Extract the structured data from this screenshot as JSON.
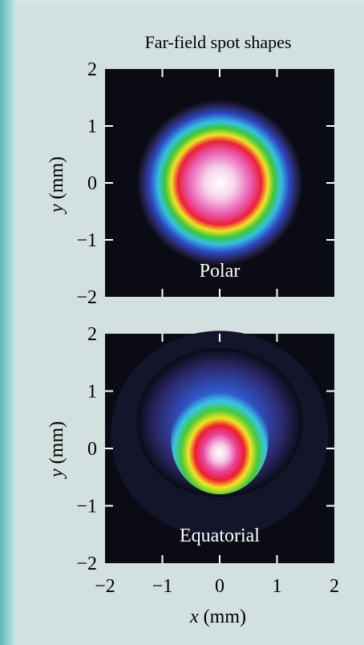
{
  "chart_data": [
    {
      "type": "heatmap",
      "title": "Far-field spot shapes",
      "panel_label": "Polar",
      "xlabel": "",
      "ylabel": "y (mm)",
      "xlim": [
        -2,
        2
      ],
      "ylim": [
        -2,
        2
      ],
      "yticks": [
        "2",
        "1",
        "0",
        "−1",
        "−2"
      ],
      "spot": {
        "cx": 0.0,
        "cy": 0.0,
        "rx": 1.0,
        "ry": 1.0,
        "halo_rx": 1.45,
        "halo_ry": 1.45
      }
    },
    {
      "type": "heatmap",
      "panel_label": "Equatorial",
      "xlabel": "x (mm)",
      "ylabel": "y (mm)",
      "xlim": [
        -2,
        2
      ],
      "ylim": [
        -2,
        2
      ],
      "xticks": [
        "−2",
        "−1",
        "0",
        "1",
        "2"
      ],
      "yticks": [
        "2",
        "1",
        "0",
        "−1",
        "−2"
      ],
      "spot": {
        "cx": 0.0,
        "cy": -0.1,
        "rx": 0.85,
        "ry": 0.6,
        "halo_cx": 0.0,
        "halo_cy": 0.45,
        "halo_rx": 1.45,
        "halo_ry": 1.3
      }
    }
  ],
  "colormap": [
    "#ffffff",
    "#f3a3d6",
    "#e8377f",
    "#ef1a24",
    "#f4ee22",
    "#3fcf3f",
    "#2fb8e8",
    "#2a43c4",
    "#3a3478",
    "#1c1c30",
    "#0a0b14"
  ]
}
